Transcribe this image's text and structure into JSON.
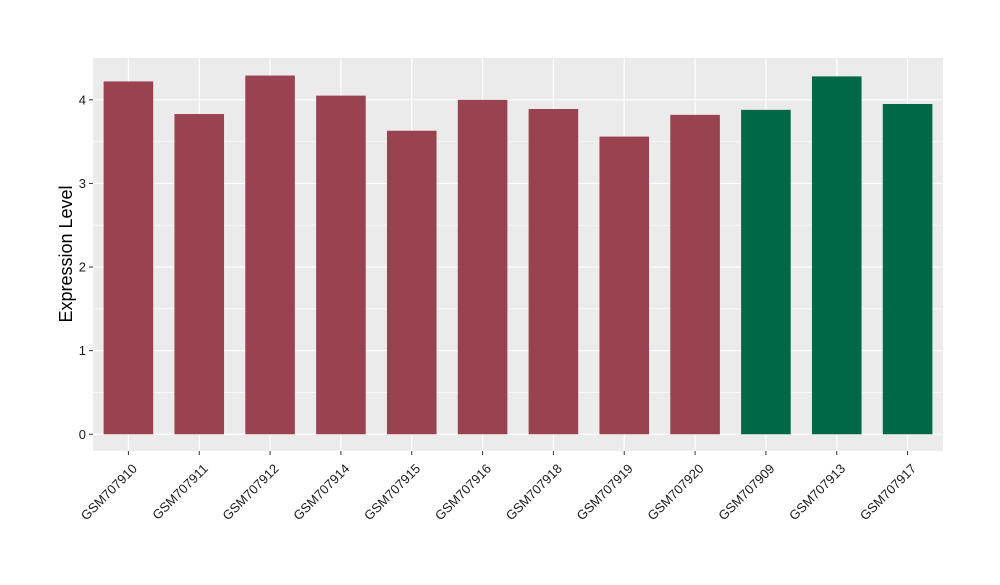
{
  "chart_data": {
    "type": "bar",
    "title": "",
    "xlabel": "",
    "ylabel": "Expression Level",
    "ylim": [
      -0.2,
      4.5
    ],
    "yticks": [
      0,
      1,
      2,
      3,
      4
    ],
    "categories": [
      "GSM707910",
      "GSM707911",
      "GSM707912",
      "GSM707914",
      "GSM707915",
      "GSM707916",
      "GSM707918",
      "GSM707919",
      "GSM707920",
      "GSM707909",
      "GSM707913",
      "GSM707917"
    ],
    "values": [
      4.22,
      3.83,
      4.29,
      4.05,
      3.63,
      4.0,
      3.89,
      3.56,
      3.82,
      3.88,
      4.28,
      3.95
    ],
    "groups": [
      "a",
      "a",
      "a",
      "a",
      "a",
      "a",
      "a",
      "a",
      "a",
      "b",
      "b",
      "b"
    ],
    "group_colors": {
      "a": "#9a4350",
      "b": "#006846"
    },
    "panel_background": "#ebebeb",
    "grid_color": "#ffffff",
    "grid": true,
    "legend": "none"
  }
}
